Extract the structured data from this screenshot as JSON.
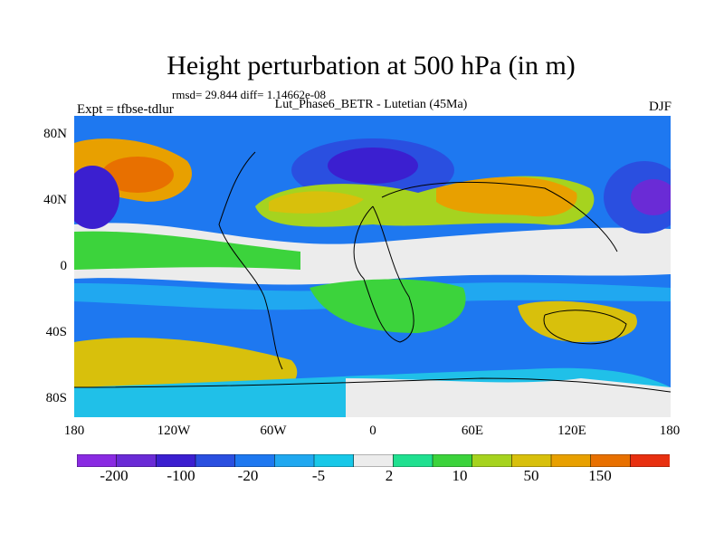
{
  "title": "Height perturbation at 500 hPa (in m)",
  "stats": "rmsd= 29.844 diff= 1.14662e-08",
  "subtitle": "Lut_Phase6_BETR - Lutetian (45Ma)",
  "experiment": "Expt = tfbse-tdlur",
  "season": "DJF",
  "lat_ticks": [
    "80N",
    "40N",
    "0",
    "40S",
    "80S"
  ],
  "lon_ticks": [
    "180",
    "120W",
    "60W",
    "0",
    "60E",
    "120E",
    "180"
  ],
  "colorbar": {
    "colors": [
      "#8a2be2",
      "#6a2bd6",
      "#3b1fd0",
      "#2a4fe0",
      "#1e78f0",
      "#20a8f0",
      "#18c8e8",
      "#ececec",
      "#20e090",
      "#3cd33c",
      "#a6d31f",
      "#d8c00c",
      "#e8a000",
      "#e87000",
      "#e83010"
    ],
    "labels": [
      "-200",
      "-100",
      "-20",
      "-5",
      "2",
      "10",
      "50",
      "150"
    ]
  }
}
